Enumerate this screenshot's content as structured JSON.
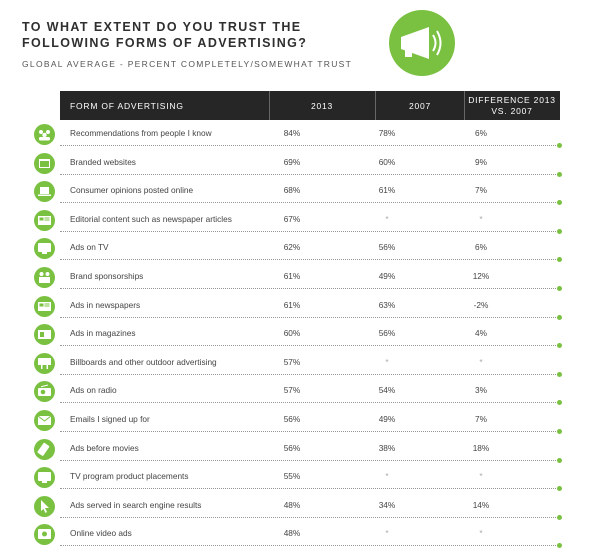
{
  "title_line1": "TO WHAT EXTENT DO YOU TRUST THE",
  "title_line2": "FOLLOWING FORMS OF ADVERTISING?",
  "subtitle": "GLOBAL AVERAGE - PERCENT COMPLETELY/SOMEWHAT TRUST",
  "colors": {
    "accent": "#7ac142",
    "header_bg": "#262626",
    "text": "#3a3a3a"
  },
  "logo_icon": "megaphone-icon",
  "chart_data": {
    "type": "table",
    "columns": [
      "FORM OF ADVERTISING",
      "2013",
      "2007",
      "DIFFERENCE 2013 VS. 2007"
    ],
    "rows": [
      {
        "icon": "people-group-icon",
        "label": "Recommendations from people I know",
        "y2013": "84%",
        "y2007": "78%",
        "diff": "6%"
      },
      {
        "icon": "browser-window-icon",
        "label": "Branded websites",
        "y2013": "69%",
        "y2007": "60%",
        "diff": "9%"
      },
      {
        "icon": "laptop-icon",
        "label": "Consumer opinions posted online",
        "y2013": "68%",
        "y2007": "61%",
        "diff": "7%"
      },
      {
        "icon": "newspaper-icon",
        "label": "Editorial content such as newspaper articles",
        "y2013": "67%",
        "y2007": "*",
        "diff": "*"
      },
      {
        "icon": "tv-icon",
        "label": "Ads on TV",
        "y2013": "62%",
        "y2007": "56%",
        "diff": "6%"
      },
      {
        "icon": "sponsorship-people-icon",
        "label": "Brand sponsorships",
        "y2013": "61%",
        "y2007": "49%",
        "diff": "12%"
      },
      {
        "icon": "newspaper-icon",
        "label": "Ads in newspapers",
        "y2013": "61%",
        "y2007": "63%",
        "diff": "-2%"
      },
      {
        "icon": "magazine-icon",
        "label": "Ads in magazines",
        "y2013": "60%",
        "y2007": "56%",
        "diff": "4%"
      },
      {
        "icon": "billboard-icon",
        "label": "Billboards and other outdoor advertising",
        "y2013": "57%",
        "y2007": "*",
        "diff": "*"
      },
      {
        "icon": "radio-icon",
        "label": "Ads on radio",
        "y2013": "57%",
        "y2007": "54%",
        "diff": "3%"
      },
      {
        "icon": "email-icon",
        "label": "Emails I signed up for",
        "y2013": "56%",
        "y2007": "49%",
        "diff": "7%"
      },
      {
        "icon": "film-ticket-icon",
        "label": "Ads before movies",
        "y2013": "56%",
        "y2007": "38%",
        "diff": "18%"
      },
      {
        "icon": "tv-icon",
        "label": "TV program product placements",
        "y2013": "55%",
        "y2007": "*",
        "diff": "*"
      },
      {
        "icon": "cursor-icon",
        "label": "Ads served in search engine results",
        "y2013": "48%",
        "y2007": "34%",
        "diff": "14%"
      },
      {
        "icon": "video-player-icon",
        "label": "Online video ads",
        "y2013": "48%",
        "y2007": "*",
        "diff": "*"
      }
    ]
  }
}
